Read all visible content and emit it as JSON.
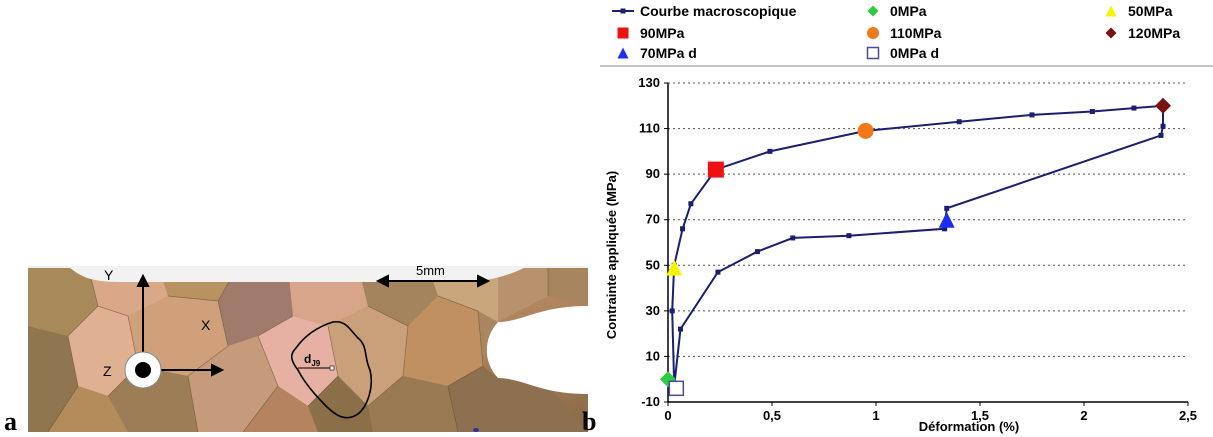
{
  "panel_a": {
    "letter": "a",
    "scale_bar_label": "5mm",
    "axis_y_label": "Y",
    "axis_x_label": "X",
    "axis_z_label": "Z",
    "grain_label_main": "d",
    "grain_label_sub": "J9"
  },
  "panel_b": {
    "letter": "b"
  },
  "chart_data": {
    "type": "line",
    "xlabel": "Déformation (%)",
    "ylabel": "Contrainte appliquée (MPa)",
    "xlim": [
      0,
      2.5
    ],
    "ylim": [
      -10,
      130
    ],
    "x_ticks": [
      0,
      0.5,
      1,
      1.5,
      2,
      2.5
    ],
    "x_tick_labels": [
      "0",
      "0,5",
      "1",
      "1,5",
      "2",
      "2,5"
    ],
    "y_ticks": [
      -10,
      10,
      30,
      50,
      70,
      90,
      110,
      130
    ],
    "y_tick_labels": [
      "-10",
      "10",
      "30",
      "50",
      "70",
      "90",
      "110",
      "130"
    ],
    "grid": "horizontal dotted",
    "legend_position": "top",
    "colors": {
      "curve": "#1a1f6e",
      "green": "#2ecc40",
      "yellow": "#f5f500",
      "red": "#ee1111",
      "orange": "#f07a1a",
      "darkred": "#7a1010",
      "blue": "#1e2ef0",
      "hollow": "#4a4aa0"
    },
    "series": [
      {
        "name": "Courbe macroscopique",
        "marker": "small-square",
        "points": [
          [
            0.03,
            -3
          ],
          [
            0.02,
            30
          ],
          [
            0.03,
            50
          ],
          [
            0.07,
            66
          ],
          [
            0.11,
            77
          ],
          [
            0.23,
            92
          ],
          [
            0.49,
            100
          ],
          [
            0.95,
            109
          ],
          [
            1.4,
            113
          ],
          [
            1.75,
            116
          ],
          [
            2.04,
            117.5
          ],
          [
            2.24,
            119
          ],
          [
            2.38,
            120
          ],
          [
            2.38,
            111
          ],
          [
            2.37,
            107
          ],
          [
            1.34,
            75
          ],
          [
            1.33,
            66
          ],
          [
            0.87,
            63
          ],
          [
            0.6,
            62
          ],
          [
            0.43,
            56
          ],
          [
            0.24,
            47
          ],
          [
            0.06,
            22
          ],
          [
            0.03,
            -3
          ]
        ]
      },
      {
        "name": "0MPa",
        "marker": "diamond",
        "color": "green",
        "points": [
          [
            0.0,
            0
          ]
        ]
      },
      {
        "name": "50MPa",
        "marker": "triangle",
        "color": "yellow",
        "points": [
          [
            0.03,
            49
          ]
        ]
      },
      {
        "name": "90MPa",
        "marker": "square",
        "color": "red",
        "points": [
          [
            0.23,
            92
          ]
        ]
      },
      {
        "name": "110MPa",
        "marker": "circle",
        "color": "orange",
        "points": [
          [
            0.95,
            109
          ]
        ]
      },
      {
        "name": "120MPa",
        "marker": "diamond",
        "color": "darkred",
        "points": [
          [
            2.38,
            120
          ]
        ]
      },
      {
        "name": "70MPa d",
        "marker": "triangle",
        "color": "blue",
        "points": [
          [
            1.34,
            70
          ]
        ]
      },
      {
        "name": "0MPa d",
        "marker": "hollow-square",
        "color": "hollow",
        "points": [
          [
            0.04,
            -4
          ]
        ]
      }
    ]
  }
}
